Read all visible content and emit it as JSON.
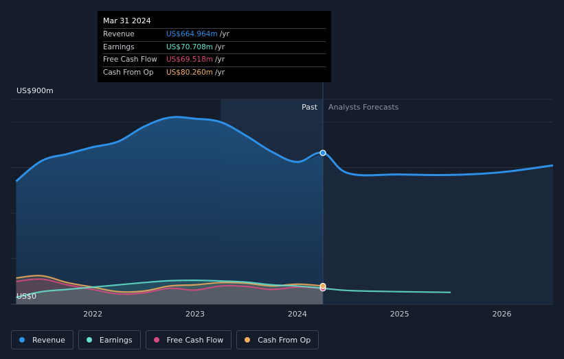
{
  "tooltip": {
    "date": "Mar 31 2024",
    "rows": [
      {
        "label": "Revenue",
        "value": "US$664.964m",
        "unit": "/yr",
        "color": "#2d8fe6"
      },
      {
        "label": "Earnings",
        "value": "US$70.708m",
        "unit": "/yr",
        "color": "#63e3cf"
      },
      {
        "label": "Free Cash Flow",
        "value": "US$69.518m",
        "unit": "/yr",
        "color": "#d9497f"
      },
      {
        "label": "Cash From Op",
        "value": "US$80.260m",
        "unit": "/yr",
        "color": "#f0ad5c"
      }
    ]
  },
  "legend": [
    {
      "label": "Revenue",
      "color": "#2d8fe6"
    },
    {
      "label": "Earnings",
      "color": "#63e3cf"
    },
    {
      "label": "Free Cash Flow",
      "color": "#d9497f"
    },
    {
      "label": "Cash From Op",
      "color": "#f0ad5c"
    }
  ],
  "chart_data": {
    "type": "area",
    "title": "",
    "xlabel": "",
    "ylabel": "",
    "y_top_label": "US$900m",
    "y_bottom_label": "US$0",
    "ylim": [
      0,
      900
    ],
    "xlim": [
      2021.2,
      2026.5
    ],
    "x_ticks": [
      2022,
      2023,
      2024,
      2025,
      2026
    ],
    "divider_x": 2024.25,
    "past_label": "Past",
    "forecast_label": "Analysts Forecasts",
    "highlight_x": 2024.25,
    "series": [
      {
        "name": "Revenue",
        "color": "#2d8fe6",
        "x": [
          2021.25,
          2021.5,
          2021.75,
          2022.0,
          2022.25,
          2022.5,
          2022.75,
          2023.0,
          2023.25,
          2023.5,
          2023.75,
          2024.0,
          2024.25,
          2024.5,
          2025.0,
          2025.5,
          2026.0,
          2026.5
        ],
        "values": [
          540,
          630,
          660,
          690,
          715,
          780,
          820,
          815,
          800,
          740,
          670,
          625,
          665,
          575,
          570,
          568,
          580,
          610
        ],
        "forecast_from": 2024.25
      },
      {
        "name": "Earnings",
        "color": "#63e3cf",
        "x": [
          2021.25,
          2021.5,
          2021.75,
          2022.0,
          2022.25,
          2022.5,
          2022.75,
          2023.0,
          2023.25,
          2023.5,
          2023.75,
          2024.0,
          2024.25,
          2024.5,
          2025.0,
          2025.5
        ],
        "values": [
          30,
          55,
          65,
          75,
          85,
          95,
          103,
          105,
          102,
          97,
          85,
          80,
          70,
          60,
          55,
          52
        ],
        "forecast_from": 2024.25
      },
      {
        "name": "Free Cash Flow",
        "color": "#d9497f",
        "x": [
          2021.25,
          2021.5,
          2021.75,
          2022.0,
          2022.25,
          2022.5,
          2022.75,
          2023.0,
          2023.25,
          2023.5,
          2023.75,
          2024.0,
          2024.25
        ],
        "values": [
          100,
          110,
          85,
          65,
          45,
          50,
          70,
          62,
          80,
          78,
          65,
          75,
          70
        ]
      },
      {
        "name": "Cash From Op",
        "color": "#f0ad5c",
        "x": [
          2021.25,
          2021.5,
          2021.75,
          2022.0,
          2022.25,
          2022.5,
          2022.75,
          2023.0,
          2023.25,
          2023.5,
          2023.75,
          2024.0,
          2024.25
        ],
        "values": [
          115,
          125,
          95,
          75,
          55,
          58,
          80,
          85,
          95,
          92,
          80,
          88,
          80
        ]
      }
    ]
  }
}
